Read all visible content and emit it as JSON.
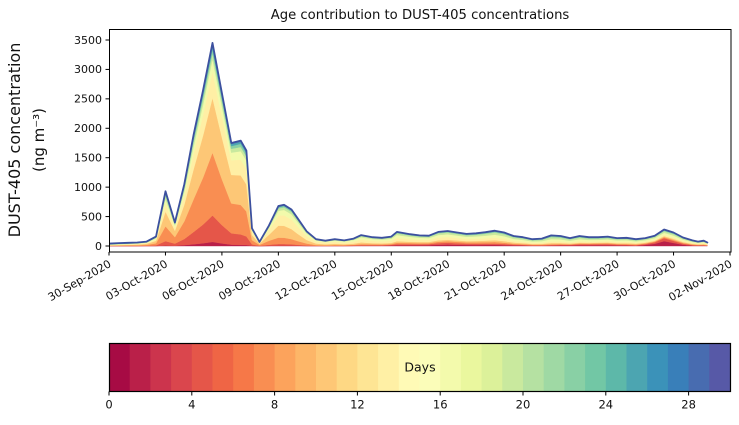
{
  "figure": {
    "background": "#ffffff"
  },
  "chart_data": {
    "type": "area",
    "subtype": "stacked-age-spectrum",
    "title": "Age contribution to DUST-405 concentrations",
    "ylabel_line1": "DUST-405 concentration",
    "ylabel_line2": "(ng m⁻³)",
    "xlabel": "",
    "x_unit": "days since 2020-09-30",
    "xlim_days": [
      0,
      33
    ],
    "ylim": [
      -100,
      3687
    ],
    "grid": false,
    "yticks": [
      0,
      500,
      1000,
      1500,
      2000,
      2500,
      3000,
      3500
    ],
    "xtick_days": [
      0,
      3,
      6,
      9,
      12,
      15,
      18,
      21,
      24,
      27,
      30,
      33
    ],
    "xtick_labels": [
      "30-Sep-2020",
      "03-Oct-2020",
      "06-Oct-2020",
      "09-Oct-2020",
      "12-Oct-2020",
      "15-Oct-2020",
      "18-Oct-2020",
      "21-Oct-2020",
      "24-Oct-2020",
      "27-Oct-2020",
      "30-Oct-2020",
      "02-Nov-2020"
    ],
    "envelope_color": "#3c509f",
    "envelope": {
      "days": [
        0,
        0.5,
        1,
        1.5,
        2,
        2.5,
        3,
        3.5,
        4,
        4.5,
        5,
        5.5,
        6,
        6.5,
        7,
        7.3,
        7.6,
        8,
        8.5,
        9,
        9.3,
        9.7,
        10,
        10.5,
        11,
        11.5,
        12,
        12.5,
        13,
        13.4,
        14,
        14.5,
        15,
        15.3,
        16,
        16.5,
        17,
        17.5,
        18,
        18.5,
        19,
        19.5,
        20,
        20.5,
        21,
        21.5,
        22,
        22.5,
        23,
        23.5,
        24,
        24.5,
        25,
        25.5,
        26,
        26.5,
        27,
        27.5,
        28,
        28.5,
        29,
        29.5,
        30,
        30.5,
        31,
        31.3,
        31.6,
        31.8
      ],
      "total_ng_m3": [
        40,
        50,
        55,
        60,
        75,
        160,
        930,
        400,
        1050,
        1900,
        2650,
        3450,
        2600,
        1750,
        1790,
        1620,
        300,
        70,
        350,
        680,
        700,
        620,
        480,
        250,
        115,
        90,
        115,
        95,
        125,
        185,
        150,
        140,
        160,
        240,
        200,
        180,
        175,
        240,
        255,
        230,
        205,
        215,
        235,
        260,
        230,
        170,
        150,
        115,
        125,
        180,
        170,
        135,
        170,
        150,
        150,
        160,
        135,
        140,
        115,
        135,
        175,
        280,
        230,
        145,
        95,
        75,
        90,
        60
      ]
    },
    "age_bands": {
      "edges_days": [
        0,
        3,
        6,
        9,
        12,
        15,
        18,
        21,
        24,
        27,
        30
      ],
      "colors": [
        "#b92049",
        "#e55649",
        "#f98e52",
        "#fdc776",
        "#ffefa5",
        "#f2faab",
        "#c8e99e",
        "#88cfa4",
        "#4ca5b1",
        "#486cb0"
      ],
      "fraction_keyframes": [
        {
          "d": 0.0,
          "f": [
            0.02,
            0.05,
            0.1,
            0.14,
            0.15,
            0.14,
            0.12,
            0.12,
            0.13,
            0.13
          ]
        },
        {
          "d": 2.5,
          "f": [
            0.01,
            0.06,
            0.22,
            0.26,
            0.17,
            0.1,
            0.07,
            0.05,
            0.04,
            0.02
          ]
        },
        {
          "d": 3.0,
          "f": [
            0.01,
            0.08,
            0.27,
            0.27,
            0.15,
            0.08,
            0.06,
            0.04,
            0.03,
            0.01
          ]
        },
        {
          "d": 5.5,
          "f": [
            0.02,
            0.13,
            0.31,
            0.27,
            0.13,
            0.06,
            0.03,
            0.02,
            0.02,
            0.01
          ]
        },
        {
          "d": 7.0,
          "f": [
            0.01,
            0.1,
            0.28,
            0.28,
            0.15,
            0.08,
            0.04,
            0.03,
            0.02,
            0.01
          ]
        },
        {
          "d": 9.0,
          "f": [
            0.01,
            0.04,
            0.16,
            0.3,
            0.25,
            0.12,
            0.06,
            0.03,
            0.02,
            0.01
          ]
        },
        {
          "d": 11.5,
          "f": [
            0.01,
            0.03,
            0.1,
            0.2,
            0.3,
            0.2,
            0.09,
            0.04,
            0.02,
            0.01
          ]
        },
        {
          "d": 14.5,
          "f": [
            0.04,
            0.07,
            0.09,
            0.12,
            0.24,
            0.22,
            0.12,
            0.06,
            0.03,
            0.01
          ]
        },
        {
          "d": 18.0,
          "f": [
            0.1,
            0.12,
            0.1,
            0.1,
            0.18,
            0.18,
            0.12,
            0.06,
            0.03,
            0.01
          ]
        },
        {
          "d": 20.5,
          "f": [
            0.07,
            0.09,
            0.1,
            0.12,
            0.17,
            0.19,
            0.14,
            0.07,
            0.03,
            0.02
          ]
        },
        {
          "d": 23.5,
          "f": [
            0.04,
            0.06,
            0.08,
            0.1,
            0.15,
            0.22,
            0.19,
            0.1,
            0.04,
            0.02
          ]
        },
        {
          "d": 26.0,
          "f": [
            0.1,
            0.12,
            0.08,
            0.08,
            0.14,
            0.18,
            0.15,
            0.08,
            0.05,
            0.02
          ]
        },
        {
          "d": 28.0,
          "f": [
            0.05,
            0.08,
            0.1,
            0.12,
            0.15,
            0.2,
            0.15,
            0.08,
            0.05,
            0.02
          ]
        },
        {
          "d": 29.5,
          "f": [
            0.3,
            0.18,
            0.06,
            0.06,
            0.08,
            0.12,
            0.1,
            0.05,
            0.03,
            0.02
          ]
        },
        {
          "d": 31.0,
          "f": [
            0.08,
            0.1,
            0.1,
            0.12,
            0.15,
            0.18,
            0.14,
            0.07,
            0.04,
            0.02
          ]
        },
        {
          "d": 32.0,
          "f": [
            0.05,
            0.08,
            0.1,
            0.12,
            0.16,
            0.19,
            0.15,
            0.08,
            0.05,
            0.02
          ]
        }
      ]
    },
    "colorbar": {
      "label": "Days",
      "ticks": [
        0,
        4,
        8,
        12,
        16,
        20,
        24,
        28
      ],
      "range": [
        0,
        30
      ],
      "n_segments": 30,
      "colormap": "Spectral",
      "anchors": [
        "#9e0142",
        "#d53e4f",
        "#f46d43",
        "#fdae61",
        "#fee08b",
        "#ffffbf",
        "#e6f598",
        "#abdda4",
        "#66c2a5",
        "#3288bd",
        "#5e4fa2"
      ]
    }
  }
}
